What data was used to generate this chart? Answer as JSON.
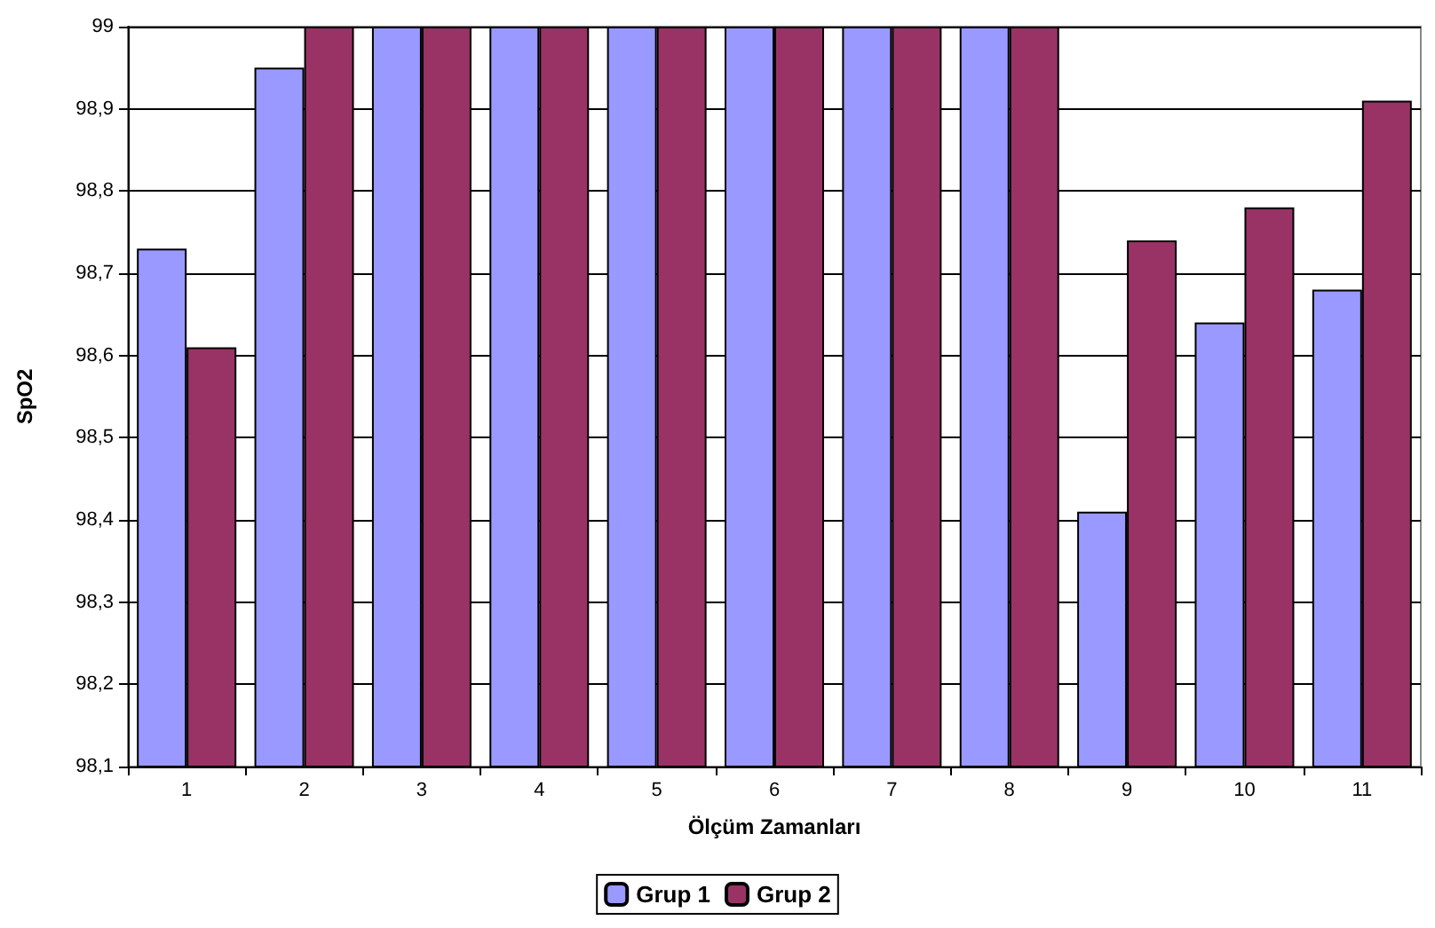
{
  "chart_data": {
    "type": "bar",
    "xlabel": "Ölçüm Zamanları",
    "ylabel": "SpO2",
    "categories": [
      "1",
      "2",
      "3",
      "4",
      "5",
      "6",
      "7",
      "8",
      "9",
      "10",
      "11"
    ],
    "series": [
      {
        "name": "Grup 1",
        "color": "#9999ff",
        "values": [
          98.73,
          98.95,
          99,
          99,
          99,
          99,
          99,
          99,
          98.41,
          98.64,
          98.68
        ]
      },
      {
        "name": "Grup 2",
        "color": "#993366",
        "values": [
          98.61,
          99,
          99,
          99,
          99,
          99,
          99,
          99,
          98.74,
          98.78,
          98.91
        ]
      }
    ],
    "ylim": [
      98.1,
      99
    ],
    "yticks": [
      {
        "value": 98.1,
        "label": "98,1"
      },
      {
        "value": 98.2,
        "label": "98,2"
      },
      {
        "value": 98.3,
        "label": "98,3"
      },
      {
        "value": 98.4,
        "label": "98,4"
      },
      {
        "value": 98.5,
        "label": "98,5"
      },
      {
        "value": 98.6,
        "label": "98,6"
      },
      {
        "value": 98.7,
        "label": "98,7"
      },
      {
        "value": 98.8,
        "label": "98,8"
      },
      {
        "value": 98.9,
        "label": "98,9"
      },
      {
        "value": 99,
        "label": "99"
      }
    ],
    "grid": "y",
    "legend": "bottom"
  }
}
